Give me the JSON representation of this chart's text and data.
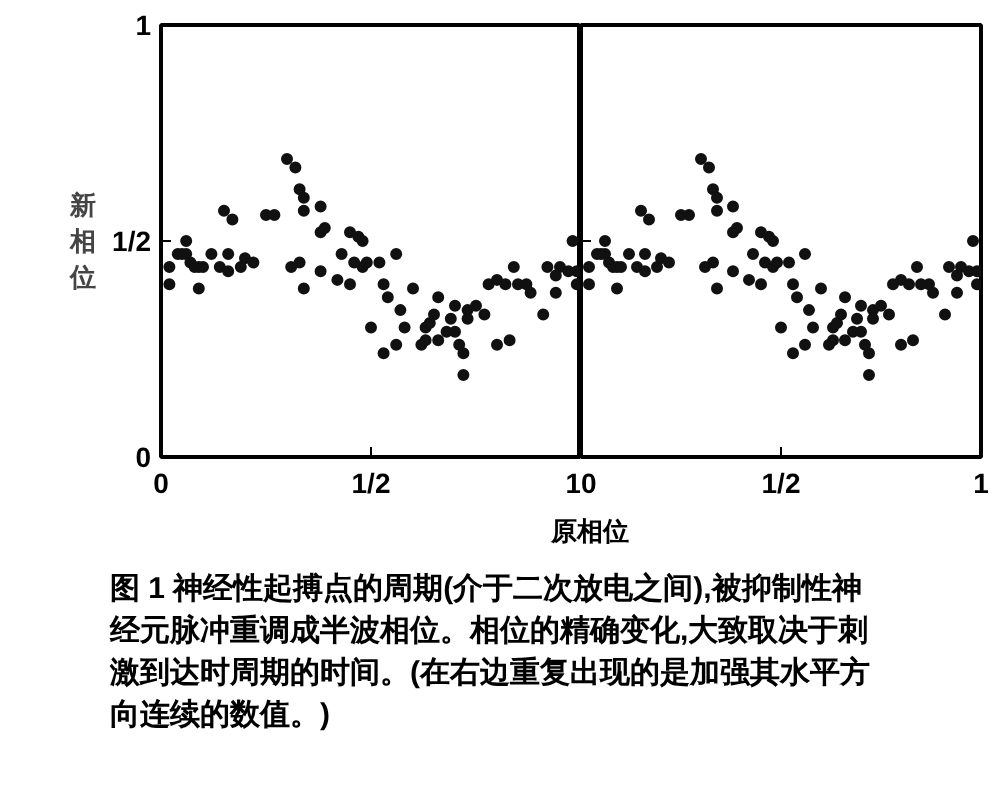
{
  "chart_data": [
    {
      "type": "scatter",
      "xlabel": "原相位",
      "ylabel": "新相位",
      "xlim": [
        0,
        1
      ],
      "ylim": [
        0,
        1
      ],
      "xticks": [
        0,
        {
          "value": 0.5,
          "label": "1/2"
        },
        1
      ],
      "yticks": [
        0,
        {
          "value": 0.5,
          "label": "1/2"
        },
        1
      ],
      "marker": "circle",
      "series": [
        {
          "color": "#111111",
          "x": [
            0.02,
            0.02,
            0.04,
            0.05,
            0.06,
            0.06,
            0.07,
            0.08,
            0.09,
            0.09,
            0.1,
            0.12,
            0.14,
            0.15,
            0.16,
            0.17,
            0.16,
            0.19,
            0.2,
            0.22,
            0.25,
            0.27,
            0.3,
            0.32,
            0.33,
            0.34,
            0.31,
            0.33,
            0.34,
            0.34,
            0.38,
            0.38,
            0.38,
            0.39,
            0.42,
            0.43,
            0.45,
            0.45,
            0.46,
            0.47,
            0.48,
            0.48,
            0.49,
            0.5,
            0.52,
            0.53,
            0.53,
            0.54,
            0.56,
            0.56,
            0.57,
            0.58,
            0.6,
            0.62,
            0.63,
            0.63,
            0.64,
            0.65,
            0.66,
            0.66,
            0.68,
            0.69,
            0.7,
            0.7,
            0.71,
            0.72,
            0.72,
            0.73,
            0.73,
            0.75,
            0.77,
            0.78,
            0.8,
            0.8,
            0.82,
            0.83,
            0.84,
            0.85,
            0.87,
            0.88,
            0.91,
            0.92,
            0.94,
            0.94,
            0.95,
            0.97,
            0.98,
            0.99,
            0.99
          ],
          "values": [
            0.4,
            0.44,
            0.47,
            0.47,
            0.5,
            0.47,
            0.45,
            0.44,
            0.39,
            0.44,
            0.44,
            0.47,
            0.44,
            0.57,
            0.47,
            0.55,
            0.43,
            0.44,
            0.46,
            0.45,
            0.56,
            0.56,
            0.69,
            0.67,
            0.62,
            0.6,
            0.44,
            0.45,
            0.39,
            0.57,
            0.58,
            0.43,
            0.52,
            0.53,
            0.41,
            0.47,
            0.52,
            0.4,
            0.45,
            0.51,
            0.5,
            0.44,
            0.45,
            0.3,
            0.45,
            0.4,
            0.24,
            0.37,
            0.47,
            0.26,
            0.34,
            0.3,
            0.39,
            0.26,
            0.27,
            0.3,
            0.31,
            0.33,
            0.37,
            0.27,
            0.29,
            0.32,
            0.35,
            0.29,
            0.26,
            0.24,
            0.19,
            0.34,
            0.32,
            0.35,
            0.33,
            0.4,
            0.26,
            0.41,
            0.4,
            0.27,
            0.44,
            0.4,
            0.4,
            0.38,
            0.33,
            0.44,
            0.38,
            0.42,
            0.44,
            0.43,
            0.5,
            0.43,
            0.4
          ]
        }
      ],
      "annotations": [
        "图 1  神经性起搏点的周期(介于二次放电之间),被抑制性神经元脉冲重调成半波相位。相位的精确变化,大致取决于刺激到达时周期的时间。(在右边重复出现的是加强其水平方向连续的数值。)"
      ]
    },
    {
      "type": "scatter",
      "xlim": [
        0,
        1
      ],
      "ylim": [
        0,
        1
      ],
      "xticks": [
        0,
        {
          "value": 0.5,
          "label": "1/2"
        },
        1
      ],
      "yticks": [
        0,
        {
          "value": 0.5,
          "label": null
        },
        1
      ],
      "tick_labels": "x",
      "marker": "circle",
      "series": [
        {
          "color": "#111111",
          "x": [
            0.02,
            0.02,
            0.04,
            0.05,
            0.06,
            0.06,
            0.07,
            0.08,
            0.09,
            0.09,
            0.1,
            0.12,
            0.14,
            0.15,
            0.16,
            0.17,
            0.16,
            0.19,
            0.2,
            0.22,
            0.25,
            0.27,
            0.3,
            0.32,
            0.33,
            0.34,
            0.31,
            0.33,
            0.34,
            0.34,
            0.38,
            0.38,
            0.38,
            0.39,
            0.42,
            0.43,
            0.45,
            0.45,
            0.46,
            0.47,
            0.48,
            0.48,
            0.49,
            0.5,
            0.52,
            0.53,
            0.53,
            0.54,
            0.56,
            0.56,
            0.57,
            0.58,
            0.6,
            0.62,
            0.63,
            0.63,
            0.64,
            0.65,
            0.66,
            0.66,
            0.68,
            0.69,
            0.7,
            0.7,
            0.71,
            0.72,
            0.72,
            0.73,
            0.73,
            0.75,
            0.77,
            0.78,
            0.8,
            0.8,
            0.82,
            0.83,
            0.84,
            0.85,
            0.87,
            0.88,
            0.91,
            0.92,
            0.94,
            0.94,
            0.95,
            0.97,
            0.98,
            0.99,
            0.99
          ],
          "values": [
            0.4,
            0.44,
            0.47,
            0.47,
            0.5,
            0.47,
            0.45,
            0.44,
            0.39,
            0.44,
            0.44,
            0.47,
            0.44,
            0.57,
            0.47,
            0.55,
            0.43,
            0.44,
            0.46,
            0.45,
            0.56,
            0.56,
            0.69,
            0.67,
            0.62,
            0.6,
            0.44,
            0.45,
            0.39,
            0.57,
            0.58,
            0.43,
            0.52,
            0.53,
            0.41,
            0.47,
            0.52,
            0.4,
            0.45,
            0.51,
            0.5,
            0.44,
            0.45,
            0.3,
            0.45,
            0.4,
            0.24,
            0.37,
            0.47,
            0.26,
            0.34,
            0.3,
            0.39,
            0.26,
            0.27,
            0.3,
            0.31,
            0.33,
            0.37,
            0.27,
            0.29,
            0.32,
            0.35,
            0.29,
            0.26,
            0.24,
            0.19,
            0.34,
            0.32,
            0.35,
            0.33,
            0.4,
            0.26,
            0.41,
            0.4,
            0.27,
            0.44,
            0.4,
            0.4,
            0.38,
            0.33,
            0.44,
            0.38,
            0.42,
            0.44,
            0.43,
            0.5,
            0.43,
            0.4
          ]
        }
      ]
    }
  ]
}
